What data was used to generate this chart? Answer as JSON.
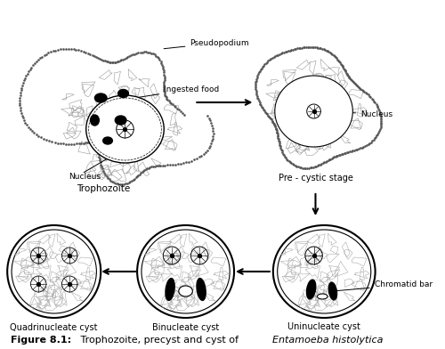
{
  "title": "Figure 8.1:",
  "title_normal": " Trophozoite, precyst and cyst of ",
  "title_italic": "Entamoeba histolytica",
  "background_color": "#ffffff",
  "labels": {
    "pseudopodium": "Pseudopodium",
    "ingested_food": "Ingested food",
    "nucleus_troph": "Nucleus",
    "trophozoite": "Trophozoite",
    "pre_cystic": "Pre - cystic stage",
    "nucleus_pre": "Nucleus",
    "chromatid_bar": "Chromatid bar",
    "uninucleate": "Uninucleate cyst",
    "binucleate": "Binucleate cyst",
    "quadrinucleate": "Quadrinucleate cyst"
  }
}
